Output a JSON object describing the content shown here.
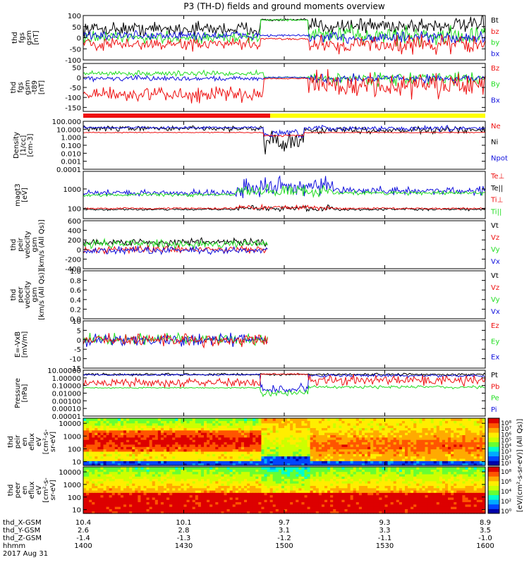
{
  "title": "P3 (TH-D) fields and ground moments overview",
  "date": "2017 Aug 31",
  "colors": {
    "black": "#000000",
    "red": "#ee1111",
    "green": "#22dd22",
    "blue": "#1111dd",
    "yellow": "#ffff00"
  },
  "chart_data": [
    {
      "type": "line",
      "ylabel": [
        "thd",
        "fgs",
        "gsm",
        "[nT]"
      ],
      "yticks": [
        "100",
        "50",
        "0",
        "-50",
        "-100"
      ],
      "ylim": [
        -100,
        100
      ],
      "series": [
        {
          "name": "Bt",
          "color": "black"
        },
        {
          "name": "bz",
          "color": "red"
        },
        {
          "name": "by",
          "color": "green"
        },
        {
          "name": "bx",
          "color": "blue"
        }
      ]
    },
    {
      "type": "line",
      "ylabel": [
        "thd",
        "fgs",
        "gsm",
        "-t89",
        "[nT]"
      ],
      "yticks": [
        "50",
        "0",
        "-50",
        "-100",
        "-150"
      ],
      "ylim": [
        -170,
        70
      ],
      "series": [
        {
          "name": "Bz",
          "color": "red"
        },
        {
          "name": "By",
          "color": "green"
        },
        {
          "name": "Bx",
          "color": "blue"
        }
      ]
    },
    {
      "type": "line",
      "ylabel": [
        "Density",
        "[1/cc]",
        "[cm-3]"
      ],
      "yticks": [
        "100.000",
        "10.000",
        "1.000",
        "0.100",
        "0.010",
        "0.001",
        "0.0001"
      ],
      "ylim": [
        0.0001,
        100
      ],
      "scale": "log",
      "series": [
        {
          "name": "Ne",
          "color": "red"
        },
        {
          "name": "Ni",
          "color": "black"
        },
        {
          "name": "Npot",
          "color": "blue"
        }
      ]
    },
    {
      "type": "line",
      "ylabel": [
        "magt3",
        "[eV]"
      ],
      "yticks": [
        "1000",
        "100"
      ],
      "ylim": [
        30,
        8000
      ],
      "scale": "log",
      "series": [
        {
          "name": "Te⊥",
          "color": "red"
        },
        {
          "name": "Te||",
          "color": "black"
        },
        {
          "name": "Ti⊥",
          "color": "red"
        },
        {
          "name": "Ti||",
          "color": "green"
        }
      ]
    },
    {
      "type": "line",
      "ylabel": [
        "thd",
        "peir",
        "velocity",
        "gsm",
        "[km/s (All Qs)]"
      ],
      "yticks": [
        "600",
        "400",
        "200",
        "0",
        "-200",
        "-400"
      ],
      "ylim": [
        -400,
        600
      ],
      "series": [
        {
          "name": "Vt",
          "color": "black"
        },
        {
          "name": "Vz",
          "color": "red"
        },
        {
          "name": "Vy",
          "color": "green"
        },
        {
          "name": "Vx",
          "color": "blue"
        }
      ]
    },
    {
      "type": "line",
      "ylabel": [
        "thd",
        "peer",
        "velocity",
        "gsm",
        "[km/s (All Qs)]"
      ],
      "yticks": [
        "1.0",
        "0.8",
        "0.6",
        "0.4",
        "0.2",
        "0.0"
      ],
      "ylim": [
        0,
        1
      ],
      "series": [
        {
          "name": "Vt",
          "color": "black"
        },
        {
          "name": "Vz",
          "color": "red"
        },
        {
          "name": "Vy",
          "color": "green"
        },
        {
          "name": "Vx",
          "color": "blue"
        }
      ]
    },
    {
      "type": "line",
      "ylabel": [
        "E=-VxB",
        "[mV/m]"
      ],
      "yticks": [
        "10",
        "5",
        "0",
        "-5",
        "-10",
        "-15"
      ],
      "ylim": [
        -15,
        10
      ],
      "series": [
        {
          "name": "Ez",
          "color": "red"
        },
        {
          "name": "Ey",
          "color": "green"
        },
        {
          "name": "Ex",
          "color": "blue"
        }
      ]
    },
    {
      "type": "line",
      "ylabel": [
        "Pressure",
        "[nPa]"
      ],
      "yticks": [
        "10.00000",
        "1.00000",
        "0.10000",
        "0.01000",
        "0.00100",
        "0.00010",
        "0.00001"
      ],
      "ylim": [
        1e-05,
        10
      ],
      "scale": "log",
      "series": [
        {
          "name": "Pt",
          "color": "black"
        },
        {
          "name": "Pb",
          "color": "red"
        },
        {
          "name": "Pe",
          "color": "green"
        },
        {
          "name": "Pi",
          "color": "blue"
        }
      ]
    },
    {
      "type": "heatmap",
      "ylabel": [
        "thd",
        "peir",
        "en",
        "eflux",
        "eV",
        "[cm²-s-",
        "sr-eV]"
      ],
      "yticks": [
        "10000",
        "1000",
        "100",
        "10"
      ],
      "ylim": [
        5,
        25000
      ],
      "scale": "log",
      "colorbar": {
        "ticks": [
          "10⁸",
          "10⁷",
          "10⁶",
          "10⁵",
          "10⁴",
          "10³",
          "10²",
          "10¹"
        ]
      }
    },
    {
      "type": "heatmap",
      "ylabel": [
        "thd",
        "peer",
        "en",
        "eflux",
        "eV",
        "[cm²-s-",
        "sr-eV]"
      ],
      "yticks": [
        "10000",
        "1000",
        "100",
        "10"
      ],
      "ylim": [
        5,
        25000
      ],
      "scale": "log",
      "colorbar": {
        "ticks": [
          "10⁸",
          "10⁶",
          "10⁴",
          "10²",
          "10⁰"
        ]
      }
    }
  ],
  "colorbar_label": "[eV/(cm²-s-sr-eV)] (All Qs)]",
  "mode_bar": {
    "segments": [
      {
        "color": "red",
        "from": 0,
        "to": 0.465
      },
      {
        "color": "yellow",
        "from": 0.465,
        "to": 1
      }
    ]
  },
  "xaxis": {
    "rows": [
      {
        "label": "thd_X-GSM",
        "values": [
          "10.4",
          "10.1",
          "9.7",
          "9.3",
          "8.9"
        ]
      },
      {
        "label": "thd_Y-GSM",
        "values": [
          "2.6",
          "2.8",
          "3.1",
          "3.3",
          "3.5"
        ]
      },
      {
        "label": "thd_Z-GSM",
        "values": [
          "-1.4",
          "-1.3",
          "-1.2",
          "-1.1",
          "-1.0"
        ]
      },
      {
        "label": "hhmm",
        "values": [
          "1400",
          "1430",
          "1500",
          "1530",
          "1600"
        ]
      }
    ]
  }
}
